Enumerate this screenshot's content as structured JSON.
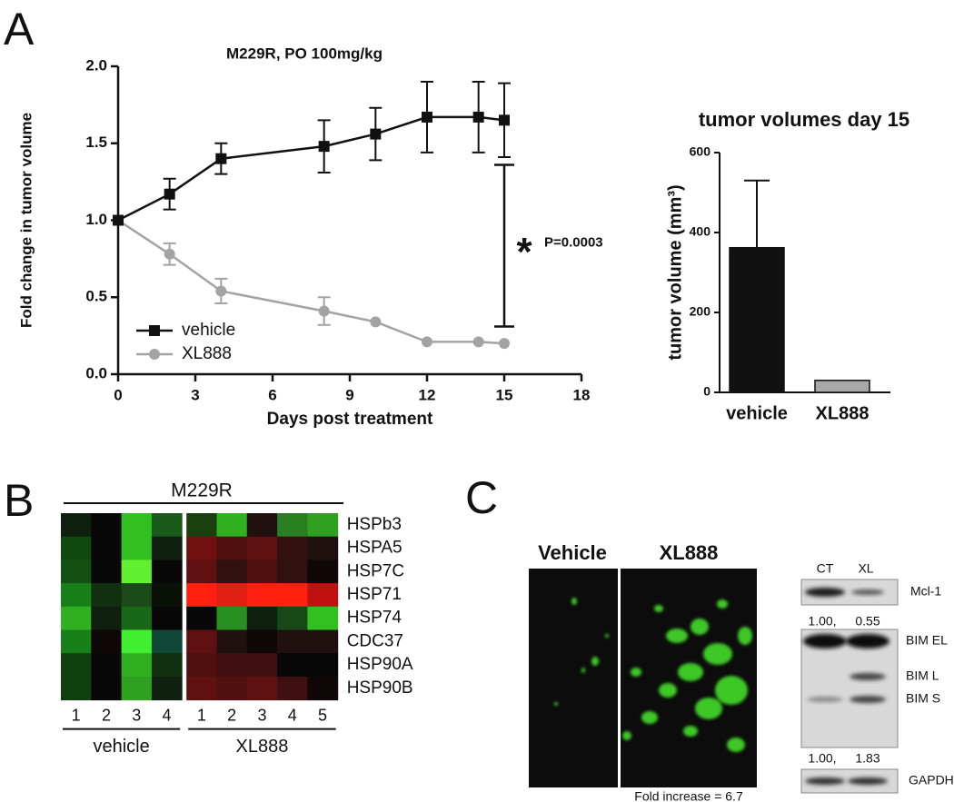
{
  "panel_labels": [
    "A",
    "B",
    "C"
  ],
  "chart_data": [
    {
      "type": "line",
      "title": "M229R, PO 100mg/kg",
      "xlabel": "Days post treatment",
      "ylabel": "Fold change in tumor volume",
      "x": [
        0,
        2,
        4,
        8,
        10,
        12,
        14,
        15
      ],
      "series": [
        {
          "name": "vehicle",
          "color": "#111111",
          "marker": "square",
          "values": [
            1.0,
            1.17,
            1.4,
            1.48,
            1.56,
            1.67,
            1.67,
            1.65
          ],
          "errors": [
            0,
            0.1,
            0.1,
            0.17,
            0.17,
            0.23,
            0.23,
            0.24
          ]
        },
        {
          "name": "XL888",
          "color": "#a3a3a3",
          "marker": "circle",
          "values": [
            1.0,
            0.78,
            0.54,
            0.41,
            0.34,
            0.21,
            0.21,
            0.2
          ],
          "errors": [
            0,
            0.07,
            0.08,
            0.09,
            0,
            0,
            0,
            0
          ]
        }
      ],
      "xlim": [
        0,
        18
      ],
      "xticks": [
        0,
        3,
        6,
        9,
        12,
        15,
        18
      ],
      "ylim": [
        0,
        2
      ],
      "yticks": [
        {
          "value": 0,
          "label": "0.0"
        },
        0.5,
        {
          "value": 1,
          "label": "1.0"
        },
        1.5,
        {
          "value": 2,
          "label": "2.0"
        }
      ],
      "legend": "lower left",
      "annotation": {
        "marker": "*",
        "text": "P=0.0003",
        "range": [
          0.31,
          1.36
        ]
      }
    },
    {
      "type": "bar",
      "title": "tumor volumes day 15",
      "ylabel": "tumor volume (mm³)",
      "categories": [
        "vehicle",
        "XL888"
      ],
      "values": [
        362,
        30
      ],
      "errors": [
        168,
        0
      ],
      "colors": [
        "#111111",
        "#a8a8a8"
      ],
      "ylim": [
        0,
        600
      ],
      "yticks": [
        0,
        200,
        400,
        600
      ]
    },
    {
      "type": "heatmap",
      "title": "M229R",
      "rows": [
        "HSPb3",
        "HSPA5",
        "HSP7C",
        "HSP71",
        "HSP74",
        "CDC37",
        "HSP90A",
        "HSP90B"
      ],
      "groups": [
        {
          "name": "vehicle",
          "columns": [
            "1",
            "2",
            "3",
            "4"
          ]
        },
        {
          "name": "XL888",
          "columns": [
            "1",
            "2",
            "3",
            "4",
            "5"
          ]
        }
      ],
      "cell_colors": [
        [
          "#102010",
          "#080808",
          "#30c020",
          "#1a5a1a",
          "#1a4010",
          "#30b020",
          "#201010",
          "#2a8020",
          "#30a020"
        ],
        [
          "#104a10",
          "#080808",
          "#30c020",
          "#102010",
          "#701010",
          "#501010",
          "#601010",
          "#301010",
          "#201010"
        ],
        [
          "#145014",
          "#080808",
          "#60f030",
          "#080808",
          "#601010",
          "#301010",
          "#501010",
          "#301010",
          "#100808"
        ],
        [
          "#188018",
          "#103010",
          "#1a4a1a",
          "#081008",
          "#ff2010",
          "#e02010",
          "#ff2010",
          "#ff2010",
          "#c01010"
        ],
        [
          "#30b020",
          "#102010",
          "#186818",
          "#080808",
          "#080808",
          "#289020",
          "#102010",
          "#184818",
          "#30c020"
        ],
        [
          "#188018",
          "#100808",
          "#40f030",
          "#104838",
          "#601010",
          "#201010",
          "#100808",
          "#201010",
          "#201010"
        ],
        [
          "#104010",
          "#080808",
          "#30b020",
          "#103010",
          "#501010",
          "#401010",
          "#401010",
          "#080808",
          "#080808"
        ],
        [
          "#104010",
          "#080808",
          "#30a020",
          "#102010",
          "#601010",
          "#501010",
          "#601010",
          "#401010",
          "#100808"
        ]
      ]
    }
  ],
  "imaging": {
    "labels": [
      "Vehicle",
      "XL888"
    ],
    "caption": "Fold increase = 6.7"
  },
  "blot": {
    "columns": [
      "CT",
      "XL"
    ],
    "bands": [
      "Mcl-1",
      "BIM EL",
      "BIM L",
      "BIM S",
      "GAPDH"
    ],
    "quantification": [
      [
        "1.00,",
        "0.55"
      ],
      [
        "1.00,",
        "1.83"
      ]
    ]
  }
}
